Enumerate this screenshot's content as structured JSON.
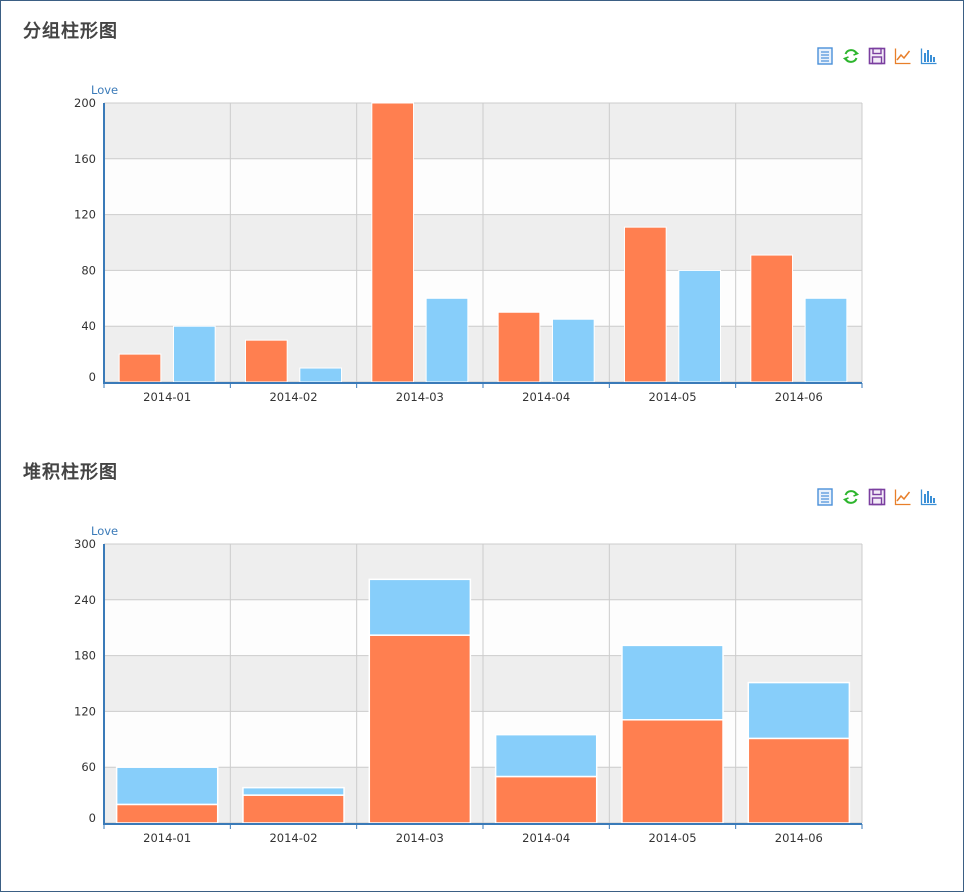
{
  "toolbox": {
    "icons": [
      "data-view-icon",
      "refresh-icon",
      "save-icon",
      "line-chart-icon",
      "bar-chart-icon"
    ],
    "colors": {
      "data-view-icon": "#4a90d9",
      "refresh-icon": "#2db52d",
      "save-icon": "#7b3fa0",
      "line-chart-icon": "#e87f2a",
      "bar-chart-icon": "#3a8fd6"
    }
  },
  "chart_data": [
    {
      "type": "bar",
      "mode": "grouped",
      "title": "分组柱形图",
      "ylabel": "Love",
      "categories": [
        "2014-01",
        "2014-02",
        "2014-03",
        "2014-04",
        "2014-05",
        "2014-06"
      ],
      "series": [
        {
          "values": [
            20,
            30,
            205,
            50,
            111,
            91
          ],
          "color": "#ff7f50"
        },
        {
          "values": [
            40,
            10,
            60,
            45,
            80,
            60
          ],
          "color": "#87cefa"
        }
      ],
      "ylim": [
        0,
        200
      ],
      "yticks": [
        0,
        40,
        80,
        120,
        160,
        200
      ],
      "grid": true
    },
    {
      "type": "bar",
      "mode": "stacked",
      "title": "堆积柱形图",
      "ylabel": "Love",
      "categories": [
        "2014-01",
        "2014-02",
        "2014-03",
        "2014-04",
        "2014-05",
        "2014-06"
      ],
      "series": [
        {
          "values": [
            20,
            30,
            202,
            50,
            111,
            91
          ],
          "color": "#ff7f50"
        },
        {
          "values": [
            40,
            8,
            60,
            45,
            80,
            60
          ],
          "color": "#87cefa"
        }
      ],
      "ylim": [
        0,
        300
      ],
      "yticks": [
        0,
        60,
        120,
        180,
        240,
        300
      ],
      "grid": true
    }
  ]
}
